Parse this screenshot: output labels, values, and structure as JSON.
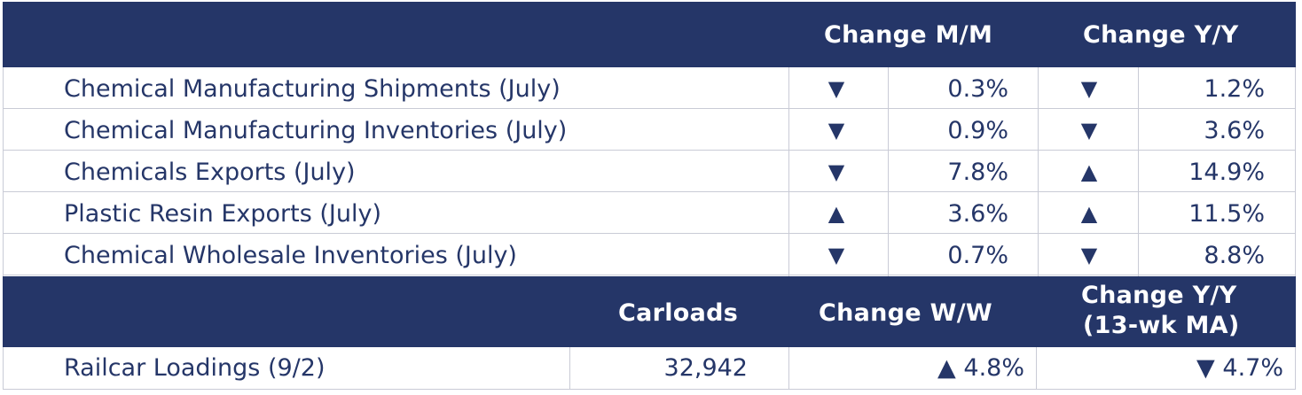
{
  "header1": {
    "change_mm": "Change M/M",
    "change_yy": "Change Y/Y"
  },
  "rows": [
    {
      "label": "Chemical Manufacturing Shipments (July)",
      "mm_dir": "▼",
      "mm": "0.3%",
      "yy_dir": "▼",
      "yy": "1.2%"
    },
    {
      "label": "Chemical Manufacturing Inventories (July)",
      "mm_dir": "▼",
      "mm": "0.9%",
      "yy_dir": "▼",
      "yy": "3.6%"
    },
    {
      "label": "Chemicals Exports (July)",
      "mm_dir": "▼",
      "mm": "7.8%",
      "yy_dir": "▲",
      "yy": "14.9%"
    },
    {
      "label": "Plastic Resin Exports (July)",
      "mm_dir": "▲",
      "mm": "3.6%",
      "yy_dir": "▲",
      "yy": "11.5%"
    },
    {
      "label": "Chemical Wholesale Inventories (July)",
      "mm_dir": "▼",
      "mm": "0.7%",
      "yy_dir": "▼",
      "yy": "8.8%"
    }
  ],
  "header2": {
    "carloads": "Carloads",
    "change_ww": "Change W/W",
    "change_yy_line1": "Change Y/Y",
    "change_yy_line2": "(13-wk MA)"
  },
  "railcar": {
    "label": "Railcar Loadings (9/2)",
    "carloads": "32,942",
    "ww": "▲ 4.8%",
    "yy": "▼ 4.7%"
  }
}
